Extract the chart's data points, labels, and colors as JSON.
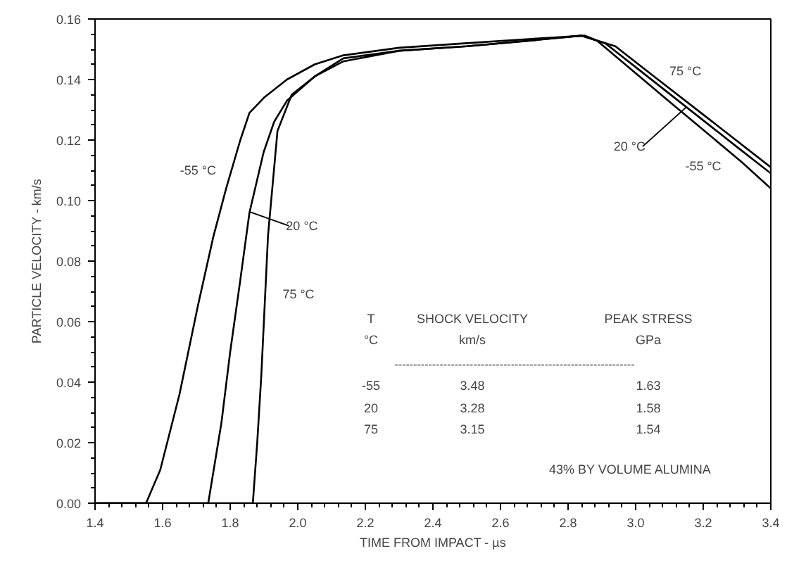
{
  "chart_data": {
    "type": "line",
    "xlabel": "TIME FROM IMPACT - µs",
    "ylabel": "PARTICLE VELOCITY - km/s",
    "xlim": [
      1.4,
      3.4
    ],
    "ylim": [
      0,
      0.16
    ],
    "xticks": [
      1.4,
      1.6,
      1.8,
      {
        "value": 2,
        "label": "2.0"
      },
      2.2,
      2.4,
      2.6,
      2.8,
      {
        "value": 3,
        "label": "3.0"
      },
      3.2,
      3.4
    ],
    "yticks": [
      {
        "value": 0,
        "label": "0.00"
      },
      {
        "value": 0.02,
        "label": "0.02"
      },
      {
        "value": 0.04,
        "label": "0.04"
      },
      {
        "value": 0.06,
        "label": "0.06"
      },
      {
        "value": 0.08,
        "label": "0.08"
      },
      {
        "value": 0.1,
        "label": "0.10"
      },
      {
        "value": 0.12,
        "label": "0.12"
      },
      {
        "value": 0.14,
        "label": "0.14"
      },
      {
        "value": 0.16,
        "label": "0.16"
      }
    ],
    "grid": false,
    "marker": "none",
    "line_style": "solid",
    "series": [
      {
        "color": "#000000",
        "x": [
          1.4,
          1.551,
          1.593,
          1.65,
          1.704,
          1.75,
          1.788,
          1.83,
          1.857,
          1.9,
          1.968,
          2.05,
          2.135,
          2.3,
          2.5,
          2.7,
          2.85,
          2.885,
          3.0,
          3.1,
          3.2,
          3.315,
          3.4
        ],
        "values": [
          0,
          0,
          0.011,
          0.036,
          0.065,
          0.088,
          0.104,
          0.12,
          0.129,
          0.134,
          0.14,
          0.145,
          0.148,
          0.1505,
          0.152,
          0.1535,
          0.1545,
          0.1529,
          0.1421,
          0.1327,
          0.1234,
          0.1126,
          0.104
        ]
      },
      {
        "color": "#000000",
        "x": [
          1.4,
          1.735,
          1.774,
          1.8,
          1.829,
          1.857,
          1.899,
          1.93,
          1.968,
          2.05,
          2.135,
          2.3,
          2.5,
          2.7,
          2.84,
          2.91,
          3.0,
          3.15,
          3.3,
          3.4
        ],
        "values": [
          0,
          0,
          0.0265,
          0.05,
          0.073,
          0.096,
          0.116,
          0.126,
          0.133,
          0.141,
          0.147,
          0.1495,
          0.151,
          0.153,
          0.1545,
          0.152,
          0.1441,
          0.1309,
          0.1177,
          0.109
        ]
      },
      {
        "color": "#000000",
        "x": [
          1.4,
          1.867,
          1.88,
          1.892,
          1.912,
          1.94,
          1.982,
          2.05,
          2.135,
          2.3,
          2.5,
          2.7,
          2.84,
          2.94,
          3.05,
          3.2,
          3.4
        ],
        "values": [
          0,
          0,
          0.02,
          0.042,
          0.0885,
          0.123,
          0.135,
          0.141,
          0.146,
          0.1495,
          0.151,
          0.153,
          0.1545,
          0.151,
          0.1414,
          0.1284,
          0.111
        ]
      }
    ],
    "annotations": [
      {
        "text": "-55 °C",
        "x": 1.8,
        "y": 0.11
      },
      {
        "text": "20 °C",
        "x": 1.857,
        "y": 0.0963
      },
      {
        "text": "75 °C",
        "x": 1.905,
        "y": 0.069
      },
      {
        "text": "75 °C",
        "x": 3.05,
        "y": 0.1414
      },
      {
        "text": "20 °C",
        "x": 3.15,
        "y": 0.1309
      },
      {
        "text": "-55 °C",
        "x": 3.2,
        "y": 0.1234
      },
      "T",
      "SHOCK VELOCITY",
      "PEAK STRESS",
      "°C",
      "km/s",
      "GPa",
      "----------------------------------------------------------------",
      "-55",
      "3.48",
      "1.63",
      "20",
      "3.28",
      "1.58",
      "75",
      "3.15",
      "1.54",
      "43% BY VOLUME ALUMINA"
    ]
  }
}
